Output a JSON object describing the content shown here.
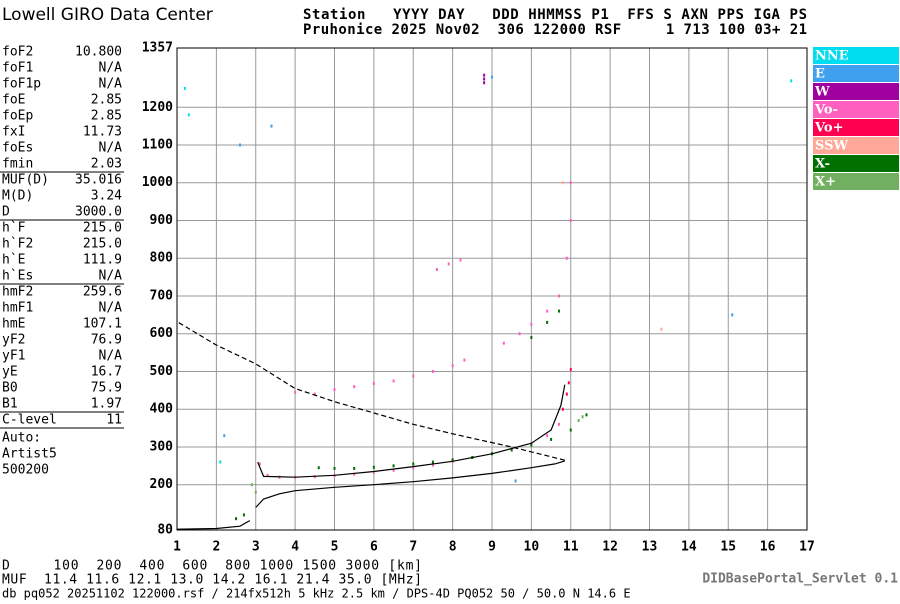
{
  "header": {
    "logo": "Lowell GIRO Data Center",
    "line1": "Station   YYYY DAY   DDD HHMMSS P1  FFS S AXN PPS IGA PS",
    "line2": "Pruhonice 2025 Nov02  306 122000 RSF     1 713 100 03+ 21"
  },
  "parameter_groups": [
    [
      {
        "label": "foF2",
        "value": "10.800"
      },
      {
        "label": "foF1",
        "value": "N/A"
      },
      {
        "label": "foF1p",
        "value": "N/A"
      },
      {
        "label": "foE",
        "value": "2.85"
      },
      {
        "label": "foEp",
        "value": "2.85"
      },
      {
        "label": "fxI",
        "value": "11.73"
      },
      {
        "label": "foEs",
        "value": "N/A"
      },
      {
        "label": "fmin",
        "value": "2.03"
      }
    ],
    [
      {
        "label": "MUF(D)",
        "value": "35.016"
      },
      {
        "label": "M(D)",
        "value": "3.24"
      },
      {
        "label": "D",
        "value": "3000.0"
      }
    ],
    [
      {
        "label": "h`F",
        "value": "215.0"
      },
      {
        "label": "h`F2",
        "value": "215.0"
      },
      {
        "label": "h`E",
        "value": "111.9"
      },
      {
        "label": "h`Es",
        "value": "N/A"
      }
    ],
    [
      {
        "label": "hmF2",
        "value": "259.6"
      },
      {
        "label": "hmF1",
        "value": "N/A"
      },
      {
        "label": "hmE",
        "value": "107.1"
      },
      {
        "label": "yF2",
        "value": "76.9"
      },
      {
        "label": "yF1",
        "value": "N/A"
      },
      {
        "label": "yE",
        "value": "16.7"
      },
      {
        "label": "B0",
        "value": "75.9"
      },
      {
        "label": "B1",
        "value": "1.97"
      }
    ],
    [
      {
        "label": "C-level",
        "value": "11"
      }
    ]
  ],
  "auto": [
    "Auto:",
    "Artist5",
    "500200"
  ],
  "muf_table": {
    "d_row": "D     100  200  400  600  800 1000 1500 3000 [km]",
    "muf_row": "MUF  11.4 11.6 12.1 13.0 14.2 16.1 21.4 35.0 [MHz]"
  },
  "footer": {
    "server": "DIDBasePortal_Servlet 0.1",
    "file": "db pq052 20251102 122000.rsf / 214fx512h 5 kHz 2.5 km / DPS-4D PQ052 50 / 50.0 N 14.6 E"
  },
  "chart_data": {
    "type": "scatter",
    "xlim": [
      1,
      17
    ],
    "xticks": [
      1,
      2,
      3,
      4,
      5,
      6,
      7,
      8,
      9,
      10,
      11,
      12,
      13,
      14,
      15,
      16,
      17
    ],
    "ylim": [
      80,
      1357
    ],
    "yticks": [
      80,
      200,
      300,
      400,
      500,
      600,
      700,
      800,
      900,
      1000,
      1100,
      1200,
      1357
    ],
    "grid": true,
    "series": [
      {
        "name": "NNE",
        "color": "#00dcf0",
        "x": [
          1.2,
          1.3,
          2.1,
          16.6
        ],
        "values": [
          1250,
          1180,
          260,
          1270
        ]
      },
      {
        "name": "E",
        "color": "#40a0f0",
        "x": [
          2.6,
          3.4,
          9.0,
          9.6,
          15.1,
          2.2
        ],
        "values": [
          1100,
          1150,
          1280,
          210,
          650,
          330
        ]
      },
      {
        "name": "W",
        "color": "#a000a0",
        "x": [
          8.8,
          8.8,
          8.8
        ],
        "values": [
          1265,
          1275,
          1285
        ]
      },
      {
        "name": "Vo-",
        "color": "#ff60c0",
        "x": [
          3.1,
          3.3,
          3.6,
          4.0,
          4.5,
          5.0,
          5.5,
          6.0,
          6.5,
          7.0,
          7.5,
          8.0,
          8.5,
          9.0,
          9.5,
          10.0,
          10.4,
          10.7,
          4.0,
          4.5,
          5.0,
          5.5,
          6.0,
          6.5,
          7.0,
          7.5,
          8.0,
          8.3,
          9.3,
          9.7,
          10.0,
          10.4,
          10.7,
          10.9,
          11.0,
          11.0,
          7.6,
          7.9,
          8.2
        ],
        "values": [
          255,
          225,
          220,
          220,
          221,
          224,
          228,
          233,
          238,
          245,
          252,
          262,
          272,
          283,
          295,
          310,
          330,
          360,
          445,
          440,
          452,
          460,
          468,
          475,
          488,
          500,
          515,
          530,
          575,
          600,
          625,
          660,
          700,
          800,
          900,
          1000,
          770,
          785,
          795
        ]
      },
      {
        "name": "Vo+",
        "color": "#ff0050",
        "x": [
          10.9,
          10.95,
          11.0,
          10.8
        ],
        "values": [
          440,
          470,
          505,
          400
        ]
      },
      {
        "name": "SSW",
        "color": "#ffa898",
        "x": [
          13.3,
          10.8
        ],
        "values": [
          612,
          1000
        ]
      },
      {
        "name": "X-",
        "color": "#007000",
        "x": [
          4.6,
          5.0,
          5.5,
          6.0,
          6.5,
          7.0,
          7.5,
          8.0,
          8.5,
          9.0,
          9.5,
          10.0,
          10.5,
          11.0,
          11.4,
          10.0,
          10.4,
          10.7,
          2.5,
          2.7
        ],
        "values": [
          245,
          243,
          243,
          246,
          250,
          255,
          260,
          266,
          272,
          282,
          292,
          305,
          320,
          345,
          385,
          590,
          630,
          660,
          110,
          120
        ]
      },
      {
        "name": "X+",
        "color": "#70b060",
        "x": [
          3.0,
          2.9,
          11.2,
          11.3
        ],
        "values": [
          180,
          200,
          370,
          380
        ]
      }
    ],
    "curves": [
      {
        "color": "#000",
        "dash": false,
        "x": [
          3.05,
          3.2,
          4.0,
          5.0,
          6.0,
          7.0,
          8.0,
          9.0,
          10.0,
          10.5,
          10.75,
          10.85
        ],
        "values": [
          260,
          222,
          220,
          225,
          235,
          248,
          262,
          282,
          310,
          345,
          410,
          465
        ]
      },
      {
        "color": "#000",
        "dash": false,
        "x": [
          3.0,
          3.2,
          3.6,
          4.0,
          5.0,
          6.0,
          7.0,
          8.0,
          9.0,
          10.0,
          10.6,
          10.85
        ],
        "values": [
          140,
          162,
          176,
          184,
          193,
          200,
          208,
          218,
          230,
          245,
          255,
          263
        ]
      },
      {
        "color": "#000",
        "dash": false,
        "x": [
          1.0,
          2.0,
          2.6,
          2.85
        ],
        "values": [
          82,
          84,
          90,
          105
        ]
      },
      {
        "color": "#000",
        "dash": true,
        "x": [
          10.85,
          9.5,
          8.0,
          7.0,
          6.0,
          5.0,
          4.0,
          3.0,
          2.0,
          1.0
        ],
        "values": [
          265,
          300,
          335,
          360,
          390,
          420,
          455,
          520,
          570,
          632
        ]
      }
    ]
  }
}
